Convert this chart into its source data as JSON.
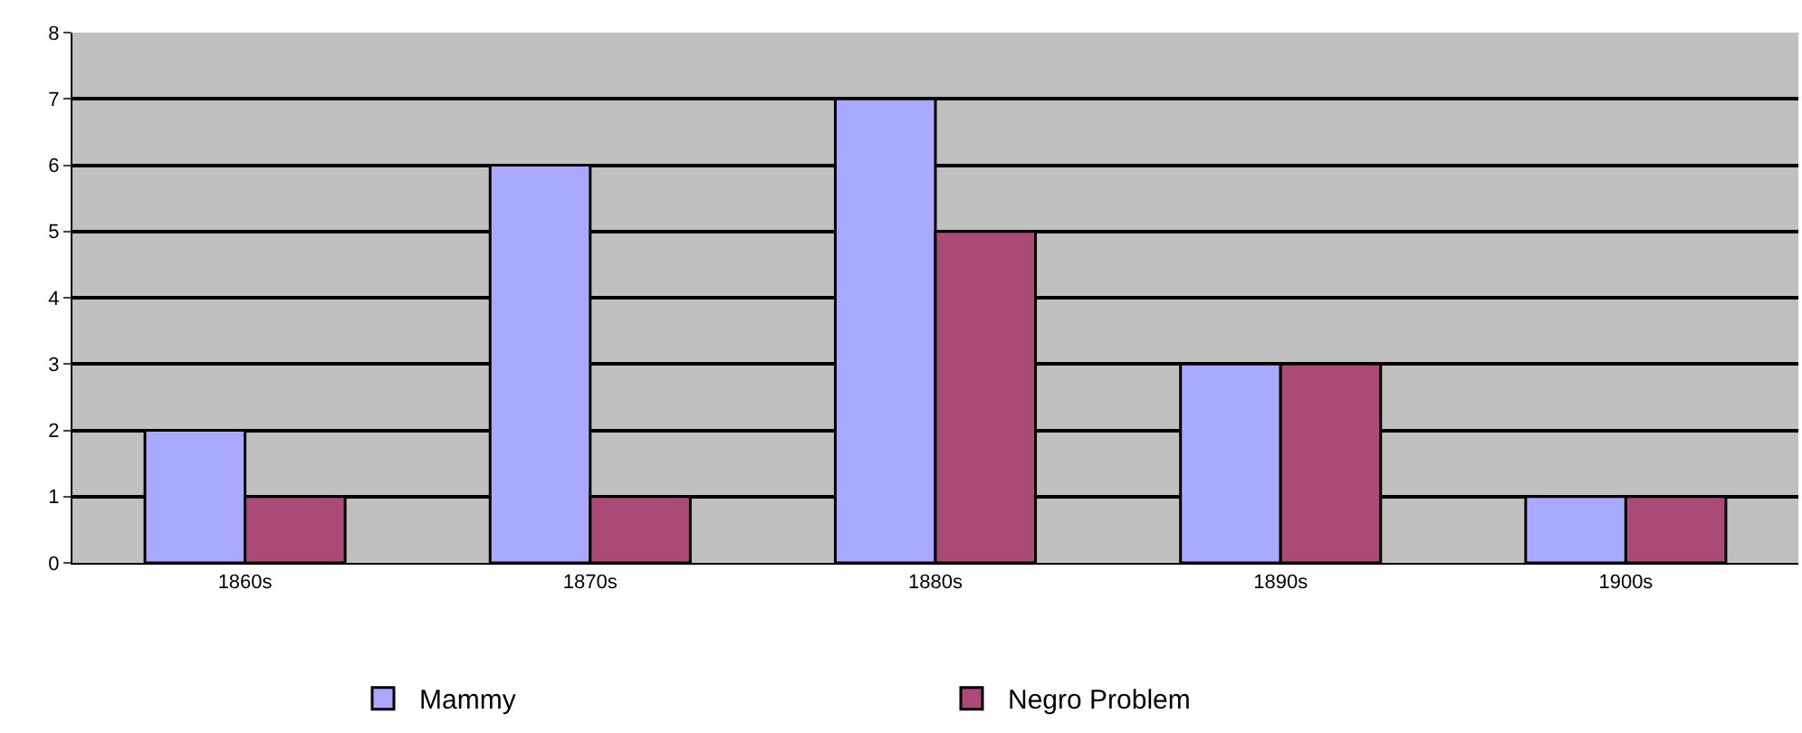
{
  "chart_data": {
    "type": "bar",
    "categories": [
      "1860s",
      "1870s",
      "1880s",
      "1890s",
      "1900s"
    ],
    "series": [
      {
        "name": "Mammy",
        "color": "#a9a9ff",
        "values": [
          2,
          6,
          7,
          3,
          1
        ]
      },
      {
        "name": "Negro Problem",
        "color": "#aa4a77",
        "values": [
          1,
          1,
          5,
          3,
          1
        ]
      }
    ],
    "ylim": [
      0,
      8
    ],
    "yticks": [
      0,
      1,
      2,
      3,
      4,
      5,
      6,
      7,
      8
    ],
    "grid": "y",
    "legend": "bottom"
  }
}
